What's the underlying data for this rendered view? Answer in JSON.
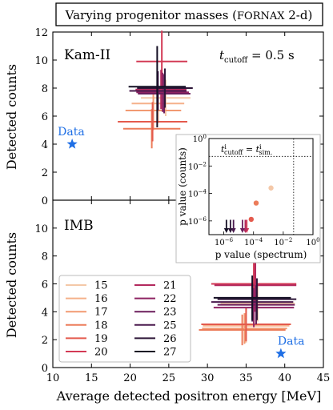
{
  "title": "Varying progenitor masses (Fornax 2-d)",
  "chart_data": [
    {
      "type": "scatter",
      "panel": "Kam-II",
      "annotation": "t_cutoff = 0.5 s",
      "xlabel": "Average detected positron energy [MeV]",
      "ylabel": "Detected counts",
      "xlim": [
        10,
        45
      ],
      "ylim": [
        0,
        12
      ],
      "data_point": {
        "label": "Data",
        "x": 12.5,
        "y": 4,
        "marker": "star",
        "color": "#1f6fe5"
      },
      "series": [
        {
          "name": "15",
          "color": "#f4c8a8",
          "x": 24.6,
          "xerr": 3.2,
          "y": 7.3,
          "yerr": 1.3
        },
        {
          "name": "16",
          "color": "#f5b08a",
          "x": 23.6,
          "xerr": 3.4,
          "y": 6.9,
          "yerr": 1.4
        },
        {
          "name": "17",
          "color": "#f29a72",
          "x": 23.0,
          "xerr": 3.6,
          "y": 6.4,
          "yerr": 1.4
        },
        {
          "name": "18",
          "color": "#ec7c5a",
          "x": 22.8,
          "xerr": 3.7,
          "y": 5.1,
          "yerr": 1.4
        },
        {
          "name": "19",
          "color": "#e45a4d",
          "x": 22.9,
          "xerr": 4.5,
          "y": 5.6,
          "yerr": 1.4
        },
        {
          "name": "20",
          "color": "#d33a55",
          "x": 24.1,
          "xerr": 3.3,
          "y": 9.9,
          "yerr": 2.2
        },
        {
          "name": "21",
          "color": "#b32a5e",
          "x": 24.0,
          "xerr": 3.3,
          "y": 7.9,
          "yerr": 1.4
        },
        {
          "name": "22",
          "color": "#8e2362",
          "x": 24.2,
          "xerr": 3.4,
          "y": 7.7,
          "yerr": 1.4
        },
        {
          "name": "23",
          "color": "#6c1e5c",
          "x": 24.4,
          "xerr": 3.4,
          "y": 7.6,
          "yerr": 1.4
        },
        {
          "name": "25",
          "color": "#4a1a4e",
          "x": 23.6,
          "xerr": 3.7,
          "y": 7.8,
          "yerr": 1.4
        },
        {
          "name": "26",
          "color": "#2d1638",
          "x": 24.5,
          "xerr": 3.6,
          "y": 8.0,
          "yerr": 1.4
        },
        {
          "name": "27",
          "color": "#140f24",
          "x": 23.5,
          "xerr": 3.7,
          "y": 8.1,
          "yerr": 2.9
        }
      ]
    },
    {
      "type": "scatter",
      "panel": "IMB",
      "xlabel": "Average detected positron energy [MeV]",
      "ylabel": "Detected counts",
      "xlim": [
        10,
        45
      ],
      "ylim": [
        0,
        12
      ],
      "data_point": {
        "label": "Data",
        "x": 39.5,
        "y": 1,
        "marker": "star",
        "color": "#1f6fe5"
      },
      "series": [
        {
          "name": "15",
          "color": "#f4c8a8",
          "x": 36.5,
          "xerr": 4.8,
          "y": 4.6,
          "yerr": 1.3
        },
        {
          "name": "16",
          "color": "#f5b08a",
          "x": 35.0,
          "xerr": 5.6,
          "y": 3.0,
          "yerr": 1.2
        },
        {
          "name": "17",
          "color": "#f29a72",
          "x": 34.8,
          "xerr": 5.5,
          "y": 2.8,
          "yerr": 1.1
        },
        {
          "name": "18",
          "color": "#ec7c5a",
          "x": 34.5,
          "xerr": 5.6,
          "y": 2.7,
          "yerr": 1.1
        },
        {
          "name": "19",
          "color": "#e45a4d",
          "x": 35.0,
          "xerr": 5.8,
          "y": 3.1,
          "yerr": 1.2
        },
        {
          "name": "20",
          "color": "#d33a55",
          "x": 36.0,
          "xerr": 5.5,
          "y": 6.0,
          "yerr": 1.8
        },
        {
          "name": "21",
          "color": "#b32a5e",
          "x": 36.2,
          "xerr": 5.3,
          "y": 5.9,
          "yerr": 1.9
        },
        {
          "name": "22",
          "color": "#8e2362",
          "x": 36.0,
          "xerr": 5.2,
          "y": 4.3,
          "yerr": 1.4
        },
        {
          "name": "23",
          "color": "#6c1e5c",
          "x": 36.3,
          "xerr": 5.0,
          "y": 4.5,
          "yerr": 1.4
        },
        {
          "name": "25",
          "color": "#4a1a4e",
          "x": 35.8,
          "xerr": 5.3,
          "y": 4.7,
          "yerr": 1.4
        },
        {
          "name": "26",
          "color": "#2d1638",
          "x": 36.4,
          "xerr": 5.1,
          "y": 4.9,
          "yerr": 1.5
        },
        {
          "name": "27",
          "color": "#140f24",
          "x": 35.8,
          "xerr": 5.0,
          "y": 5.0,
          "yerr": 1.6
        }
      ]
    },
    {
      "type": "scatter",
      "panel": "inset",
      "annotation": "t_cutoff = t_sim.",
      "xlabel": "p value (spectrum)",
      "ylabel": "p value (counts)",
      "xscale": "log",
      "yscale": "log",
      "xlim": [
        1e-07,
        1
      ],
      "ylim": [
        1e-07,
        1
      ],
      "reference_lines": [
        {
          "axis": "x",
          "value": 0.05
        },
        {
          "axis": "y",
          "value": 0.05
        }
      ],
      "points": [
        {
          "name": "15",
          "color": "#f4c8a8",
          "x": 0.0015,
          "y": 0.00025
        },
        {
          "name": "17",
          "color": "#ec7c5a",
          "x": 0.00015,
          "y": 2e-05
        },
        {
          "name": "19",
          "color": "#e45a4d",
          "x": 7e-05,
          "y": 1.3e-06
        },
        {
          "name": "16",
          "color": "#d33a55",
          "x": 3.5e-05,
          "y": 2e-07,
          "arrow": "down"
        },
        {
          "name": "21",
          "color": "#b32a5e",
          "x": 2.8e-05,
          "y": 2e-07,
          "arrow": "down"
        },
        {
          "name": "23",
          "color": "#6c1e5c",
          "x": 1.8e-05,
          "y": 2e-07,
          "arrow": "down"
        },
        {
          "name": "25",
          "color": "#4a1a4e",
          "x": 4.5e-06,
          "y": 2e-07,
          "arrow": "down"
        },
        {
          "name": "26",
          "color": "#2d1638",
          "x": 2.8e-06,
          "y": 2e-07,
          "arrow": "down"
        },
        {
          "name": "27",
          "color": "#140f24",
          "x": 1.5e-06,
          "y": 2e-07,
          "arrow": "down"
        }
      ]
    }
  ],
  "legend": {
    "placement": "lower-left of IMB panel",
    "entries": [
      {
        "label": "15",
        "color": "#f4c8a8"
      },
      {
        "label": "16",
        "color": "#f5b08a"
      },
      {
        "label": "17",
        "color": "#f29a72"
      },
      {
        "label": "18",
        "color": "#ec7c5a"
      },
      {
        "label": "19",
        "color": "#e45a4d"
      },
      {
        "label": "20",
        "color": "#d33a55"
      },
      {
        "label": "21",
        "color": "#b32a5e"
      },
      {
        "label": "22",
        "color": "#8e2362"
      },
      {
        "label": "23",
        "color": "#6c1e5c"
      },
      {
        "label": "25",
        "color": "#4a1a4e"
      },
      {
        "label": "26",
        "color": "#2d1638"
      },
      {
        "label": "27",
        "color": "#140f24"
      }
    ]
  }
}
